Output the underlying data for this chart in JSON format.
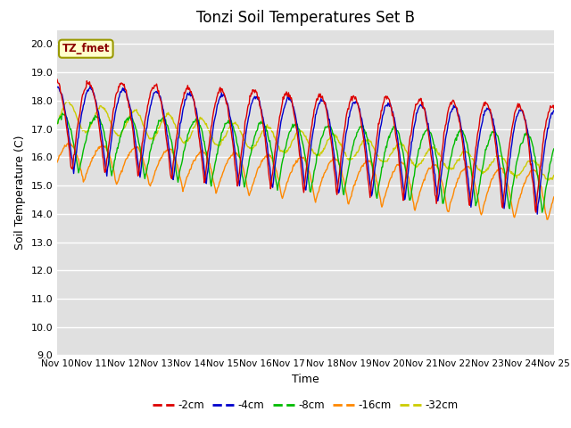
{
  "title": "Tonzi Soil Temperatures Set B",
  "xlabel": "Time",
  "ylabel": "Soil Temperature (C)",
  "ylim": [
    9.0,
    20.5
  ],
  "ytick_min": 9.0,
  "ytick_max": 20.0,
  "ytick_step": 1.0,
  "colors": {
    "-2cm": "#dd0000",
    "-4cm": "#0000cc",
    "-8cm": "#00bb00",
    "-16cm": "#ff8800",
    "-32cm": "#cccc00"
  },
  "annotation": "TZ_fmet",
  "bg_color": "#e0e0e0",
  "n_days": 15,
  "start_day": 10,
  "samples_per_day": 48,
  "title_fontsize": 12,
  "axis_fontsize": 9,
  "tick_fontsize": 8
}
